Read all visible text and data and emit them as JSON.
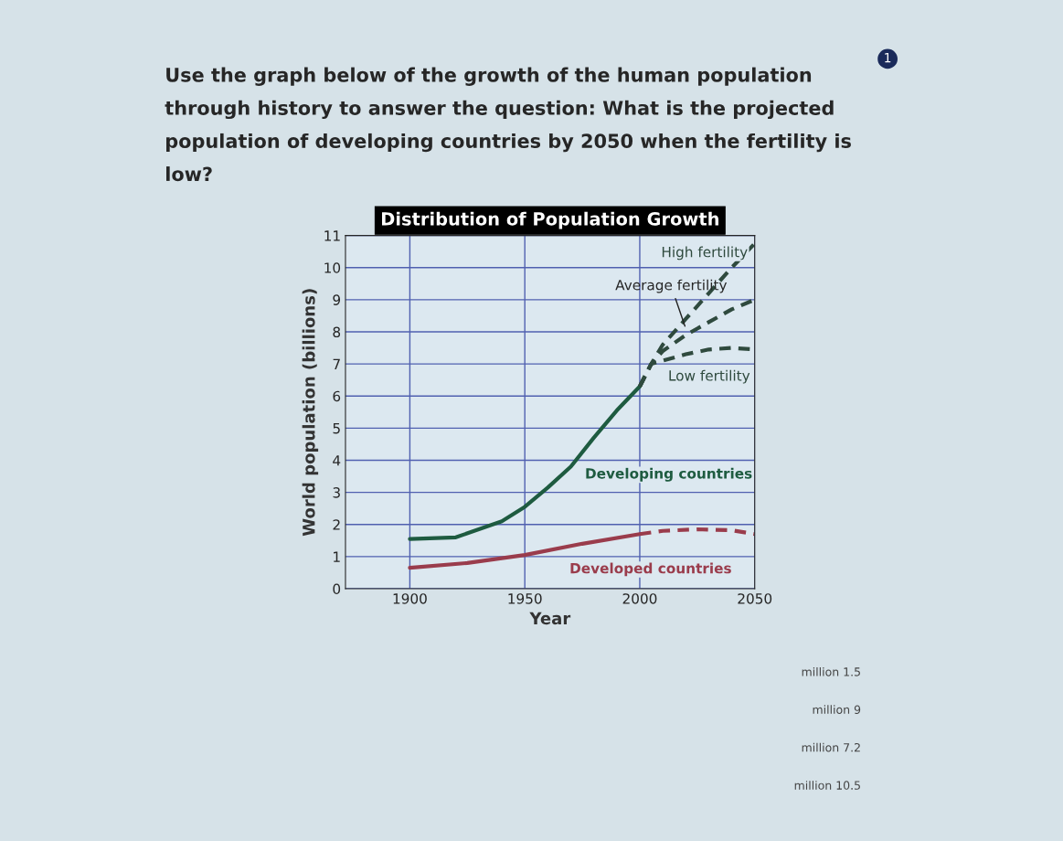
{
  "chart_data": {
    "type": "line",
    "title": "Distribution of Population Growth",
    "xlabel": "Year",
    "ylabel": "World population (billions)",
    "xlim": [
      1872,
      2050
    ],
    "xticks": [
      1900,
      1950,
      2000,
      2050
    ],
    "ylim": [
      0,
      11
    ],
    "yticks": [
      0,
      1,
      2,
      3,
      4,
      5,
      6,
      7,
      8,
      9,
      10,
      11
    ],
    "grid": true,
    "legend": false,
    "series": [
      {
        "name": "Developing countries",
        "color": "#1e5b40",
        "line_style": "solid",
        "x": [
          1900,
          1920,
          1940,
          1950,
          1960,
          1970,
          1980,
          1990,
          2000
        ],
        "values": [
          1.55,
          1.6,
          2.1,
          2.55,
          3.15,
          3.8,
          4.7,
          5.55,
          6.3
        ]
      },
      {
        "name": "High fertility",
        "color": "#2f4a3e",
        "line_style": "dashed",
        "x": [
          2000,
          2005,
          2010,
          2020,
          2030,
          2040,
          2050
        ],
        "values": [
          6.3,
          7.0,
          7.6,
          8.4,
          9.2,
          10.0,
          10.75
        ]
      },
      {
        "name": "Average fertility",
        "color": "#2f4a3e",
        "line_style": "dashed",
        "x": [
          2000,
          2005,
          2010,
          2020,
          2030,
          2040,
          2050
        ],
        "values": [
          6.3,
          7.0,
          7.4,
          7.9,
          8.3,
          8.7,
          9.0
        ]
      },
      {
        "name": "Low fertility",
        "color": "#2f4a3e",
        "line_style": "dashed",
        "x": [
          2000,
          2005,
          2010,
          2020,
          2030,
          2040,
          2050
        ],
        "values": [
          6.3,
          7.0,
          7.1,
          7.3,
          7.45,
          7.5,
          7.45
        ]
      },
      {
        "name": "Developed countries",
        "color": "#9a3c4c",
        "line_style": "solid",
        "x": [
          1900,
          1925,
          1950,
          1975,
          2000
        ],
        "values": [
          0.65,
          0.8,
          1.05,
          1.4,
          1.7
        ]
      },
      {
        "color": "#9a3c4c",
        "line_style": "dashed",
        "x": [
          2000,
          2010,
          2025,
          2040,
          2050
        ],
        "values": [
          1.7,
          1.8,
          1.85,
          1.82,
          1.7
        ]
      }
    ],
    "annotations": [
      "Use the graph below of the growth of the human population through history to answer the question: What is the projected population of developing countries by 2050 when the fertility is low?",
      "1",
      "million 1.5",
      "million 9",
      "million 7.2",
      "million 10.5"
    ]
  }
}
